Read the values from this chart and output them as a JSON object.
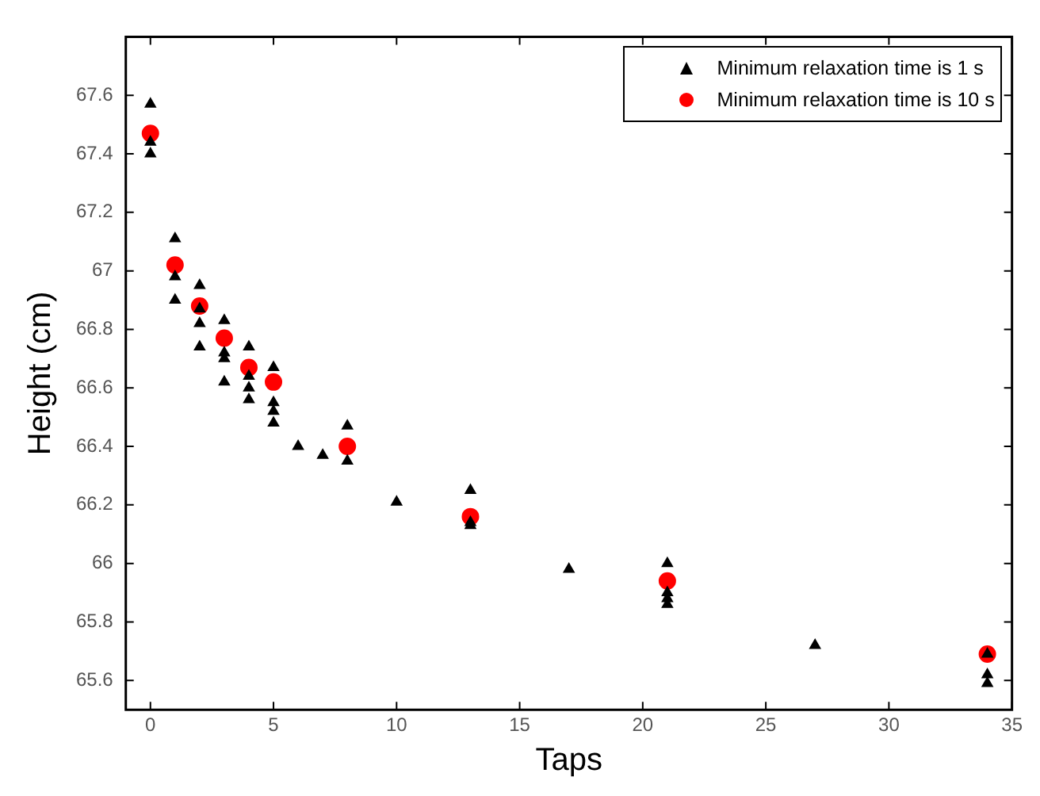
{
  "chart_data": {
    "type": "scatter",
    "xlabel": "Taps",
    "ylabel": "Height (cm)",
    "xlim": [
      -1,
      35
    ],
    "xticks": [
      0,
      5,
      10,
      15,
      20,
      25,
      30,
      35
    ],
    "ylim": [
      65.5,
      67.8
    ],
    "yticks": [
      65.6,
      65.8,
      66,
      66.2,
      66.4,
      66.6,
      66.8,
      67,
      67.2,
      67.4,
      67.6
    ],
    "grid": false,
    "legend": "top right",
    "series": [
      {
        "name": "Minimum relaxation time is 1 s",
        "color": "#000000",
        "marker": "triangle",
        "x": [
          0,
          0,
          0,
          1,
          1,
          1,
          2,
          2,
          2,
          2,
          3,
          3,
          3,
          3,
          4,
          4,
          4,
          4,
          5,
          5,
          5,
          5,
          6,
          7,
          8,
          8,
          10,
          13,
          13,
          13,
          17,
          21,
          21,
          21,
          21,
          27,
          34,
          34,
          34
        ],
        "values": [
          67.57,
          67.44,
          67.4,
          67.11,
          66.98,
          66.9,
          66.95,
          66.87,
          66.82,
          66.74,
          66.83,
          66.72,
          66.7,
          66.62,
          66.74,
          66.64,
          66.6,
          66.56,
          66.67,
          66.55,
          66.52,
          66.48,
          66.4,
          66.37,
          66.47,
          66.35,
          66.21,
          66.25,
          66.14,
          66.13,
          65.98,
          66.0,
          65.9,
          65.88,
          65.86,
          65.72,
          65.69,
          65.62,
          65.59
        ]
      },
      {
        "name": "Minimum relaxation time is 10 s",
        "color": "#ff0000",
        "marker": "circle",
        "x": [
          0,
          1,
          2,
          3,
          4,
          5,
          8,
          13,
          21,
          34
        ],
        "values": [
          67.47,
          67.02,
          66.88,
          66.77,
          66.67,
          66.62,
          66.4,
          66.16,
          65.94,
          65.69
        ]
      }
    ]
  }
}
